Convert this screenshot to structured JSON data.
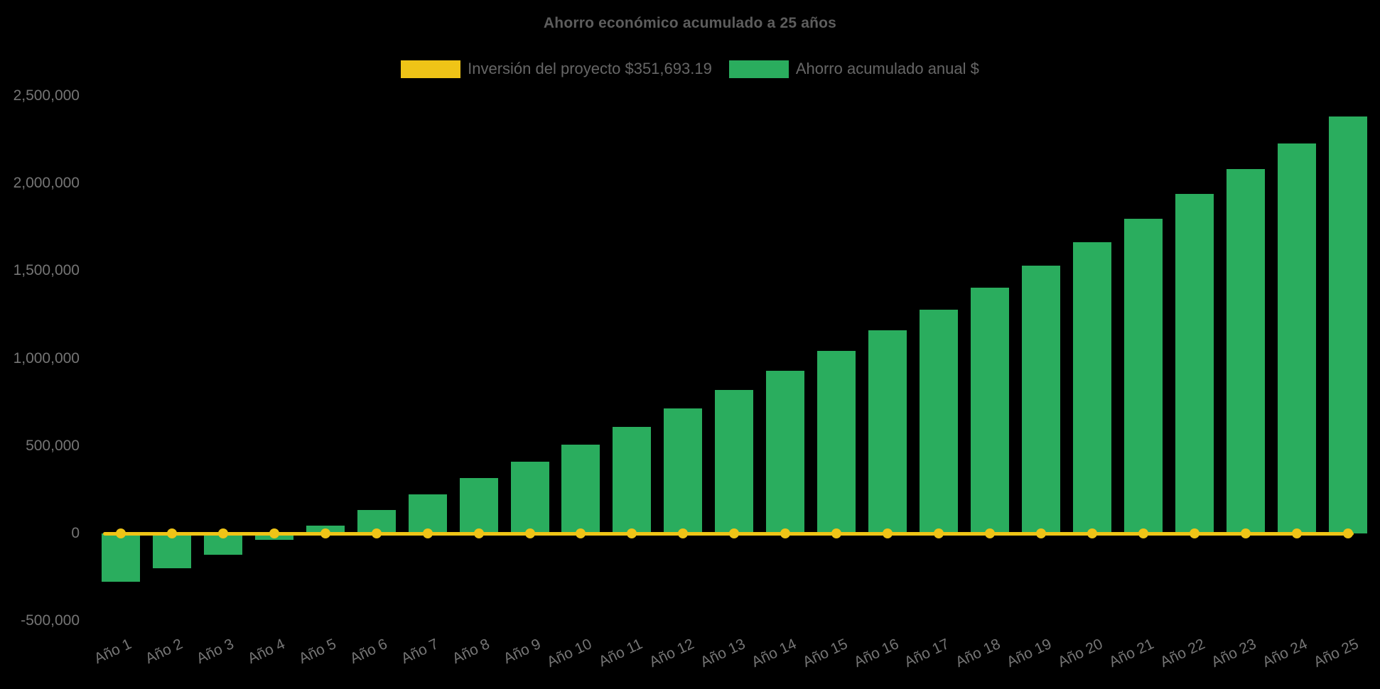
{
  "title": "Ahorro económico acumulado a 25 años",
  "legend": {
    "investment_label": "Inversión del proyecto $351,693.19",
    "savings_label": "Ahorro acumulado anual $"
  },
  "colors": {
    "background": "#000000",
    "bar_green": "#2aad5e",
    "line_yellow": "#efc417",
    "title_text": "#5d5d5d",
    "legend_text": "#666666",
    "axis_text": "#757575"
  },
  "chart_data": {
    "type": "bar",
    "title": "Ahorro económico acumulado a 25 años",
    "categories": [
      "Año 1",
      "Año 2",
      "Año 3",
      "Año 4",
      "Año 5",
      "Año 6",
      "Año 7",
      "Año 8",
      "Año 9",
      "Año 10",
      "Año 11",
      "Año 12",
      "Año 13",
      "Año 14",
      "Año 15",
      "Año 16",
      "Año 17",
      "Año 18",
      "Año 19",
      "Año 20",
      "Año 21",
      "Año 22",
      "Año 23",
      "Año 24",
      "Año 25"
    ],
    "series": [
      {
        "name": "Inversión del proyecto $351,693.19",
        "type": "line",
        "color": "#efc417",
        "marker": "circle",
        "drawn_at_value": 0,
        "values": [
          0,
          0,
          0,
          0,
          0,
          0,
          0,
          0,
          0,
          0,
          0,
          0,
          0,
          0,
          0,
          0,
          0,
          0,
          0,
          0,
          0,
          0,
          0,
          0,
          0
        ]
      },
      {
        "name": "Ahorro acumulado anual $",
        "type": "bar",
        "color": "#2aad5e",
        "values": [
          -277000,
          -199000,
          -120000,
          -38000,
          46000,
          133000,
          223000,
          315000,
          410000,
          508000,
          609000,
          713000,
          820000,
          930000,
          1043000,
          1160000,
          1280000,
          1404000,
          1532000,
          1664000,
          1799000,
          1939000,
          2082000,
          2230000,
          2383000
        ]
      }
    ],
    "investment_amount_from_legend": 351693.19,
    "ylim": [
      -500000,
      2500000
    ],
    "y_ticks": [
      {
        "value": 2500000,
        "label": "2,500,000"
      },
      {
        "value": 2000000,
        "label": "2,000,000"
      },
      {
        "value": 1500000,
        "label": "1,500,000"
      },
      {
        "value": 1000000,
        "label": "1,000,000"
      },
      {
        "value": 500000,
        "label": "500,000"
      },
      {
        "value": 0,
        "label": "0"
      },
      {
        "value": -500000,
        "label": "-500,000"
      }
    ],
    "grid": false,
    "legend_position": "top",
    "x_label_rotation_deg": -25
  }
}
